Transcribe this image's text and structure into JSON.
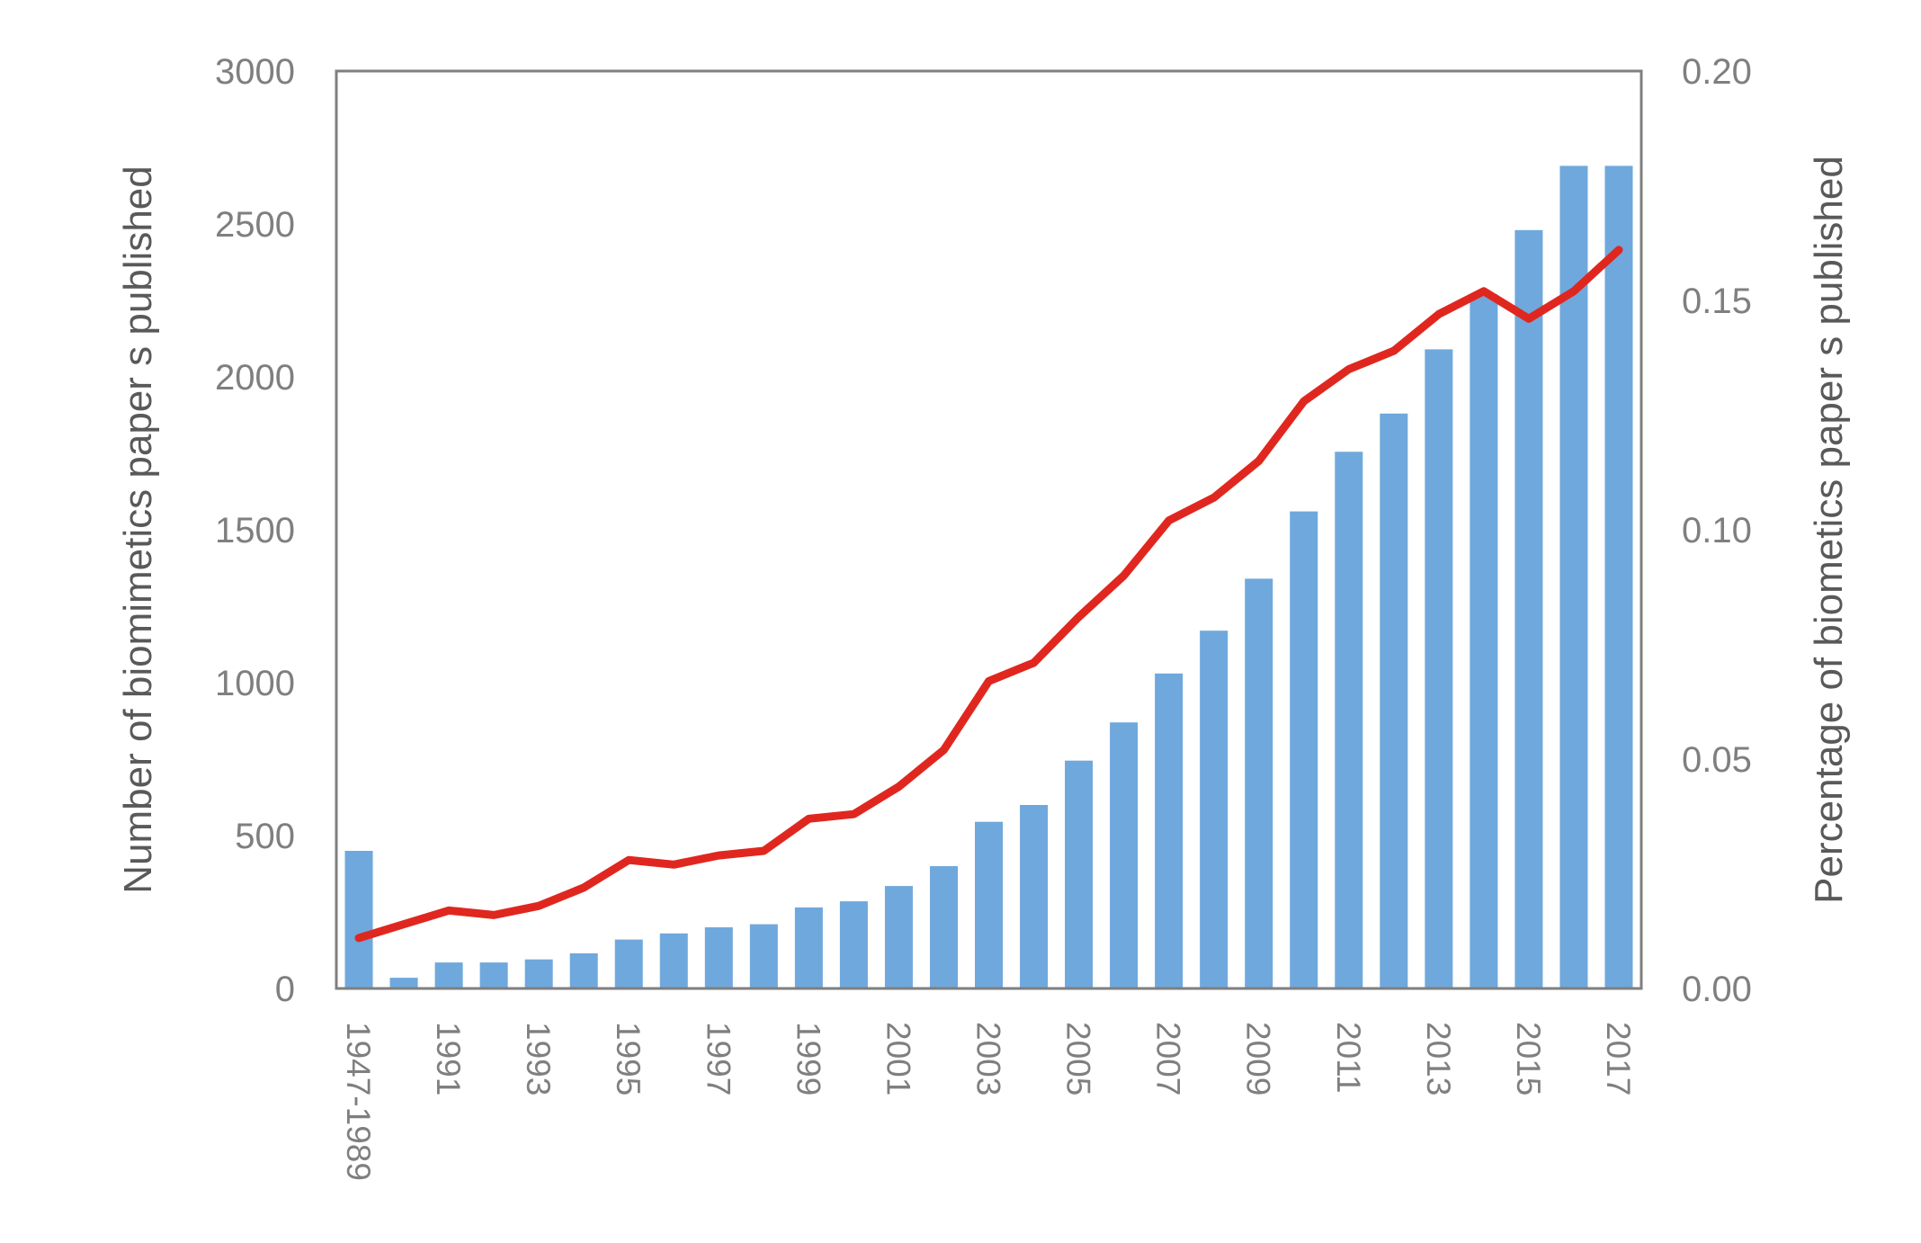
{
  "chart_data": {
    "type": "bar+line",
    "title": "",
    "categories": [
      "1947-1989",
      "1990",
      "1991",
      "1992",
      "1993",
      "1994",
      "1995",
      "1996",
      "1997",
      "1998",
      "1999",
      "2000",
      "2001",
      "2002",
      "2003",
      "2004",
      "2005",
      "2006",
      "2007",
      "2008",
      "2009",
      "2010",
      "2011",
      "2012",
      "2013",
      "2014",
      "2015",
      "2016",
      "2017"
    ],
    "category_tick_labels": [
      "1947-1989",
      "1991",
      "1993",
      "1995",
      "1997",
      "1999",
      "2001",
      "2003",
      "2005",
      "2007",
      "2009",
      "2011",
      "2013",
      "2015",
      "2017"
    ],
    "series": [
      {
        "name": "Number of biomimetics papers published",
        "type": "bar",
        "axis": "left",
        "color": "#6fa8dc",
        "values": [
          450,
          35,
          85,
          85,
          95,
          115,
          160,
          180,
          200,
          210,
          265,
          285,
          335,
          400,
          545,
          600,
          745,
          870,
          1030,
          1170,
          1340,
          1560,
          1755,
          1880,
          2090,
          2270,
          2480,
          2690,
          2690
        ]
      },
      {
        "name": "Percentage of biometics papers published",
        "type": "line",
        "axis": "right",
        "color": "#e0271f",
        "values": [
          0.011,
          0.014,
          0.017,
          0.016,
          0.018,
          0.022,
          0.028,
          0.027,
          0.029,
          0.03,
          0.037,
          0.038,
          0.044,
          0.052,
          0.067,
          0.071,
          0.081,
          0.09,
          0.102,
          0.107,
          0.115,
          0.128,
          0.135,
          0.139,
          0.147,
          0.152,
          0.146,
          0.152,
          0.161
        ]
      }
    ],
    "ylabel": "Number of biomimetics paper s published",
    "y2label": "Percentage of biometics paper s published",
    "xlabel": "",
    "ylim": [
      0,
      3000
    ],
    "y2lim": [
      0,
      0.2
    ],
    "yticks": [
      "0",
      "500",
      "1000",
      "1500",
      "2000",
      "2500",
      "3000"
    ],
    "y2ticks": [
      "0.00",
      "0.05",
      "0.10",
      "0.15",
      "0.20"
    ],
    "grid": false,
    "legend": "none"
  }
}
